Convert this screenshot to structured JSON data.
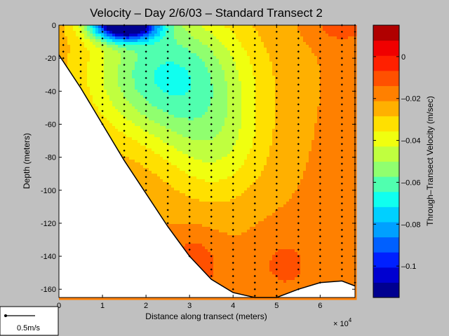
{
  "chart_data": {
    "type": "heatmap",
    "title": "Velocity – Day 2/6/03 – Standard Transect 2",
    "xlabel": "Distance along transect (meters)",
    "ylabel": "Depth (meters)",
    "x_multiplier": "× 10",
    "x_multiplier_exp": "4",
    "xlim": [
      0,
      6.8
    ],
    "ylim": [
      -165,
      0
    ],
    "x_ticks": [
      0,
      1,
      2,
      3,
      4,
      5,
      6
    ],
    "y_ticks": [
      0,
      -20,
      -40,
      -60,
      -80,
      -100,
      -120,
      -140,
      -160
    ],
    "colorbar": {
      "label": "Through–Transect Velocity (m/sec)",
      "range": [
        -0.115,
        0.015
      ],
      "ticks": [
        0,
        -0.02,
        -0.04,
        -0.06,
        -0.08,
        -0.1
      ],
      "tick_labels": [
        "0",
        "–0.02",
        "–0.04",
        "–0.06",
        "–0.08",
        "–0.1"
      ],
      "colors": [
        "#000090",
        "#0000d0",
        "#0020ff",
        "#0060ff",
        "#00a0ff",
        "#00d0ff",
        "#10ffef",
        "#50ffaf",
        "#90ff6f",
        "#c0ff3f",
        "#f0ff0f",
        "#ffe000",
        "#ffb000",
        "#ff8000",
        "#ff5000",
        "#ff2000",
        "#f00000",
        "#b00000"
      ]
    },
    "bottom_depth": {
      "x": [
        0,
        0.5,
        1,
        1.5,
        2,
        2.5,
        3,
        3.5,
        4,
        4.5,
        5,
        5.5,
        6,
        6.5,
        6.8
      ],
      "depth": [
        -18,
        -38,
        -60,
        -82,
        -102,
        -122,
        -140,
        -154,
        -162,
        -165,
        -165,
        -160,
        -156,
        -155,
        -158
      ]
    },
    "stations_x": [
      0.1,
      0.5,
      1,
      1.5,
      2,
      2.5,
      3,
      3.5,
      4,
      4.5,
      5,
      5.5,
      6,
      6.5,
      6.8
    ],
    "scale_arrow_label": "0.5m/s"
  }
}
